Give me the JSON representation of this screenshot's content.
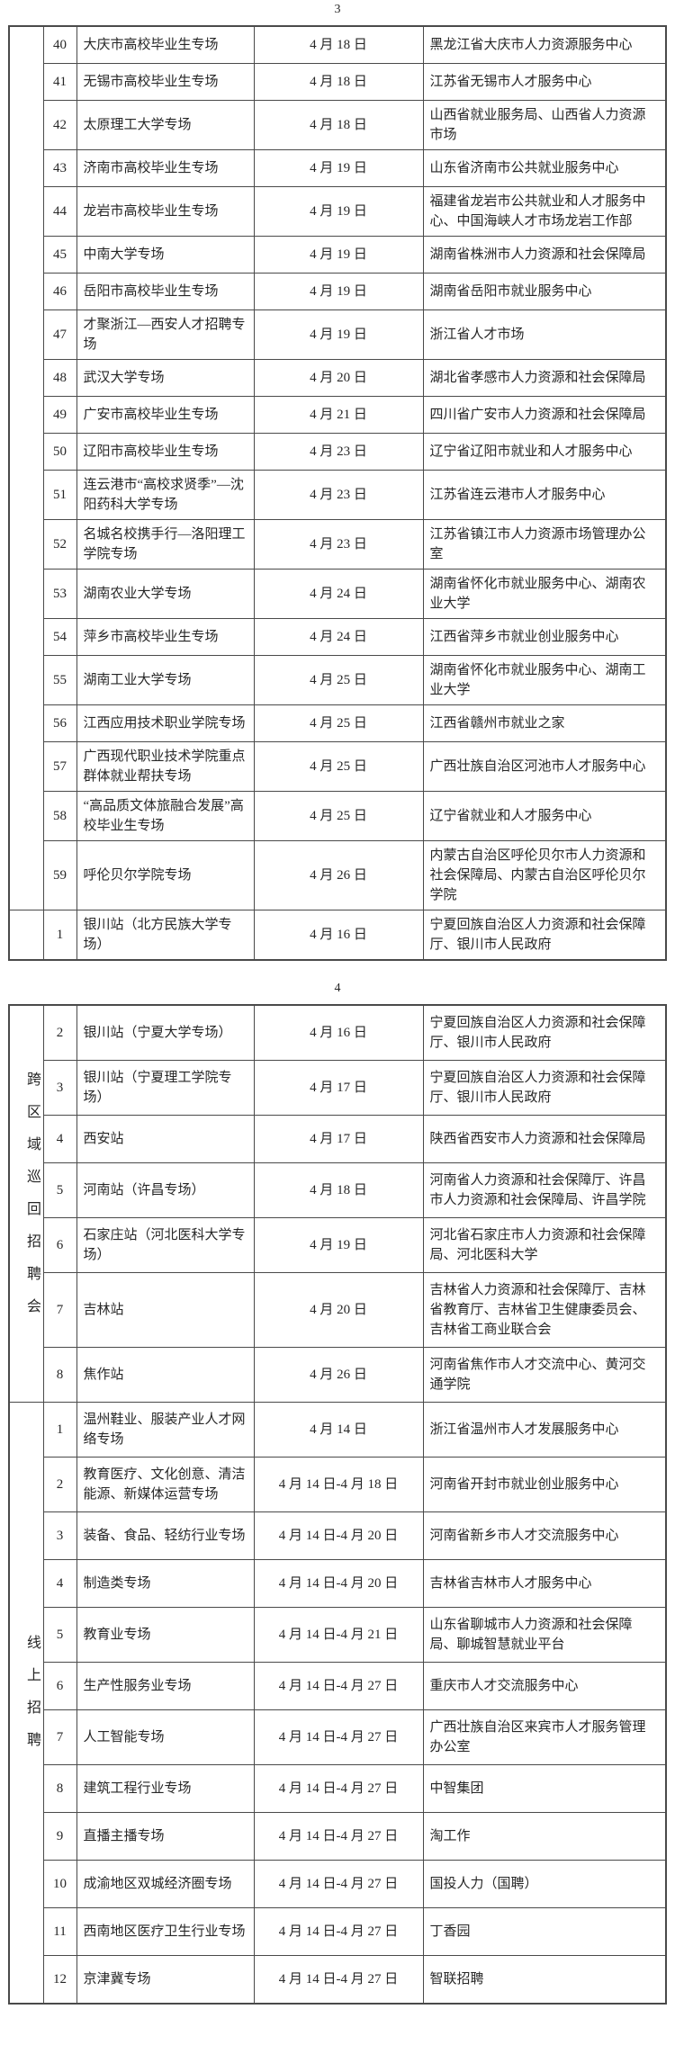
{
  "pages": [
    {
      "page_number": "3",
      "sections": [
        {
          "category_label": "",
          "rows": [
            {
              "num": "40",
              "name": "大庆市高校毕业生专场",
              "date": "4 月 18 日",
              "org": "黑龙江省大庆市人力资源服务中心"
            },
            {
              "num": "41",
              "name": "无锡市高校毕业生专场",
              "date": "4 月 18 日",
              "org": "江苏省无锡市人才服务中心"
            },
            {
              "num": "42",
              "name": "太原理工大学专场",
              "date": "4 月 18 日",
              "org": "山西省就业服务局、山西省人力资源市场"
            },
            {
              "num": "43",
              "name": "济南市高校毕业生专场",
              "date": "4 月 19 日",
              "org": "山东省济南市公共就业服务中心"
            },
            {
              "num": "44",
              "name": "龙岩市高校毕业生专场",
              "date": "4 月 19 日",
              "org": "福建省龙岩市公共就业和人才服务中心、中国海峡人才市场龙岩工作部"
            },
            {
              "num": "45",
              "name": "中南大学专场",
              "date": "4 月 19 日",
              "org": "湖南省株洲市人力资源和社会保障局"
            },
            {
              "num": "46",
              "name": "岳阳市高校毕业生专场",
              "date": "4 月 19 日",
              "org": "湖南省岳阳市就业服务中心"
            },
            {
              "num": "47",
              "name": "才聚浙江—西安人才招聘专场",
              "date": "4 月 19 日",
              "org": "浙江省人才市场"
            },
            {
              "num": "48",
              "name": "武汉大学专场",
              "date": "4 月 20 日",
              "org": "湖北省孝感市人力资源和社会保障局"
            },
            {
              "num": "49",
              "name": "广安市高校毕业生专场",
              "date": "4 月 21 日",
              "org": "四川省广安市人力资源和社会保障局"
            },
            {
              "num": "50",
              "name": "辽阳市高校毕业生专场",
              "date": "4 月 23 日",
              "org": "辽宁省辽阳市就业和人才服务中心"
            },
            {
              "num": "51",
              "name": "连云港市“高校求贤季”—沈阳药科大学专场",
              "date": "4 月 23 日",
              "org": "江苏省连云港市人才服务中心"
            },
            {
              "num": "52",
              "name": "名城名校携手行—洛阳理工学院专场",
              "date": "4 月 23 日",
              "org": "江苏省镇江市人力资源市场管理办公室"
            },
            {
              "num": "53",
              "name": "湖南农业大学专场",
              "date": "4 月 24 日",
              "org": "湖南省怀化市就业服务中心、湖南农业大学"
            },
            {
              "num": "54",
              "name": "萍乡市高校毕业生专场",
              "date": "4 月 24 日",
              "org": "江西省萍乡市就业创业服务中心"
            },
            {
              "num": "55",
              "name": "湖南工业大学专场",
              "date": "4 月 25 日",
              "org": "湖南省怀化市就业服务中心、湖南工业大学"
            },
            {
              "num": "56",
              "name": "江西应用技术职业学院专场",
              "date": "4 月 25 日",
              "org": "江西省赣州市就业之家"
            },
            {
              "num": "57",
              "name": "广西现代职业技术学院重点群体就业帮扶专场",
              "date": "4 月 25 日",
              "org": "广西壮族自治区河池市人才服务中心"
            },
            {
              "num": "58",
              "name": "“高品质文体旅融合发展”高校毕业生专场",
              "date": "4 月 25 日",
              "org": "辽宁省就业和人才服务中心"
            },
            {
              "num": "59",
              "name": "呼伦贝尔学院专场",
              "date": "4 月 26 日",
              "org": "内蒙古自治区呼伦贝尔市人力资源和社会保障局、内蒙古自治区呼伦贝尔学院"
            }
          ]
        },
        {
          "category_label": "",
          "rows": [
            {
              "num": "1",
              "name": "银川站（北方民族大学专场）",
              "date": "4 月 16 日",
              "org": "宁夏回族自治区人力资源和社会保障厅、银川市人民政府"
            }
          ]
        }
      ]
    },
    {
      "page_number": "4",
      "sections": [
        {
          "category_label": "跨区域巡回招聘会",
          "rows": [
            {
              "num": "2",
              "name": "银川站（宁夏大学专场）",
              "date": "4 月 16 日",
              "org": "宁夏回族自治区人力资源和社会保障厅、银川市人民政府"
            },
            {
              "num": "3",
              "name": "银川站（宁夏理工学院专场）",
              "date": "4 月 17 日",
              "org": "宁夏回族自治区人力资源和社会保障厅、银川市人民政府"
            },
            {
              "num": "4",
              "name": "西安站",
              "date": "4 月 17 日",
              "org": "陕西省西安市人力资源和社会保障局"
            },
            {
              "num": "5",
              "name": "河南站（许昌专场）",
              "date": "4 月 18 日",
              "org": "河南省人力资源和社会保障厅、许昌市人力资源和社会保障局、许昌学院"
            },
            {
              "num": "6",
              "name": "石家庄站（河北医科大学专场）",
              "date": "4 月 19 日",
              "org": "河北省石家庄市人力资源和社会保障局、河北医科大学"
            },
            {
              "num": "7",
              "name": "吉林站",
              "date": "4 月 20 日",
              "org": "吉林省人力资源和社会保障厅、吉林省教育厅、吉林省卫生健康委员会、吉林省工商业联合会"
            },
            {
              "num": "8",
              "name": "焦作站",
              "date": "4 月 26 日",
              "org": "河南省焦作市人才交流中心、黄河交通学院"
            }
          ]
        },
        {
          "category_label": "线上招聘",
          "rows": [
            {
              "num": "1",
              "name": "温州鞋业、服装产业人才网络专场",
              "date": "4 月 14 日",
              "org": "浙江省温州市人才发展服务中心"
            },
            {
              "num": "2",
              "name": "教育医疗、文化创意、清洁能源、新媒体运营专场",
              "date": "4 月 14 日-4 月 18 日",
              "org": "河南省开封市就业创业服务中心"
            },
            {
              "num": "3",
              "name": "装备、食品、轻纺行业专场",
              "date": "4 月 14 日-4 月 20 日",
              "org": "河南省新乡市人才交流服务中心"
            },
            {
              "num": "4",
              "name": "制造类专场",
              "date": "4 月 14 日-4 月 20 日",
              "org": "吉林省吉林市人才服务中心"
            },
            {
              "num": "5",
              "name": "教育业专场",
              "date": "4 月 14 日-4 月 21 日",
              "org": "山东省聊城市人力资源和社会保障局、聊城智慧就业平台"
            },
            {
              "num": "6",
              "name": "生产性服务业专场",
              "date": "4 月 14 日-4 月 27 日",
              "org": "重庆市人才交流服务中心"
            },
            {
              "num": "7",
              "name": "人工智能专场",
              "date": "4 月 14 日-4 月 27 日",
              "org": "广西壮族自治区来宾市人才服务管理办公室"
            },
            {
              "num": "8",
              "name": "建筑工程行业专场",
              "date": "4 月 14 日-4 月 27 日",
              "org": "中智集团"
            },
            {
              "num": "9",
              "name": "直播主播专场",
              "date": "4 月 14 日-4 月 27 日",
              "org": "淘工作"
            },
            {
              "num": "10",
              "name": "成渝地区双城经济圈专场",
              "date": "4 月 14 日-4 月 27 日",
              "org": "国投人力（国聘）"
            },
            {
              "num": "11",
              "name": "西南地区医疗卫生行业专场",
              "date": "4 月 14 日-4 月 27 日",
              "org": "丁香园"
            },
            {
              "num": "12",
              "name": "京津冀专场",
              "date": "4 月 14 日-4 月 27 日",
              "org": "智联招聘"
            }
          ]
        }
      ]
    }
  ]
}
